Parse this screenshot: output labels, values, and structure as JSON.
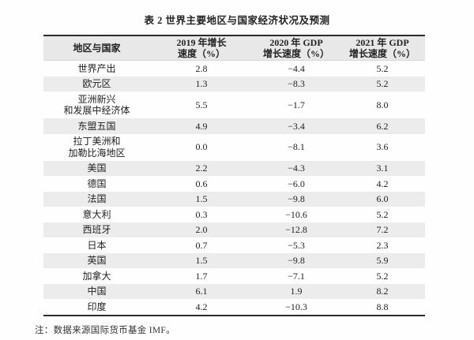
{
  "title": "表 2 世界主要地区与国家经济状况及预测",
  "table": {
    "headers": [
      "地区与国家",
      "2019 年增长\n速度（%）",
      "2020 年 GDP\n增长速度（%）",
      "2021 年 GDP\n增长速度（%）"
    ],
    "rows": [
      {
        "cells": [
          "世界产出",
          "2.8",
          "−4.4",
          "5.2"
        ]
      },
      {
        "cells": [
          "欧元区",
          "1.3",
          "−8.3",
          "5.2"
        ]
      },
      {
        "cells": [
          "亚洲新兴\n和发展中经济体",
          "5.5",
          "−1.7",
          "8.0"
        ]
      },
      {
        "cells": [
          "东盟五国",
          "4.9",
          "−3.4",
          "6.2"
        ]
      },
      {
        "cells": [
          "拉丁美洲和\n加勒比海地区",
          "0.0",
          "−8.1",
          "3.6"
        ]
      },
      {
        "cells": [
          "美国",
          "2.2",
          "−4.3",
          "3.1"
        ]
      },
      {
        "cells": [
          "德国",
          "0.6",
          "−6.0",
          "4.2"
        ]
      },
      {
        "cells": [
          "法国",
          "1.5",
          "−9.8",
          "6.0"
        ]
      },
      {
        "cells": [
          "意大利",
          "0.3",
          "−10.6",
          "5.2"
        ]
      },
      {
        "cells": [
          "西班牙",
          "2.0",
          "−12.8",
          "7.2"
        ]
      },
      {
        "cells": [
          "日本",
          "0.7",
          "−5.3",
          "2.3"
        ]
      },
      {
        "cells": [
          "英国",
          "1.5",
          "−9.8",
          "5.9"
        ]
      },
      {
        "cells": [
          "加拿大",
          "1.7",
          "−7.1",
          "5.2"
        ]
      },
      {
        "cells": [
          "中国",
          "6.1",
          "1.9",
          "8.2"
        ]
      },
      {
        "cells": [
          "印度",
          "4.2",
          "−10.3",
          "8.8"
        ]
      }
    ]
  },
  "note": "注：数据来源国际货币基金 IMF。",
  "colors": {
    "rule": "#2b2b2b",
    "header_bg": "#e8e8e8",
    "stripe": "#ececec"
  }
}
